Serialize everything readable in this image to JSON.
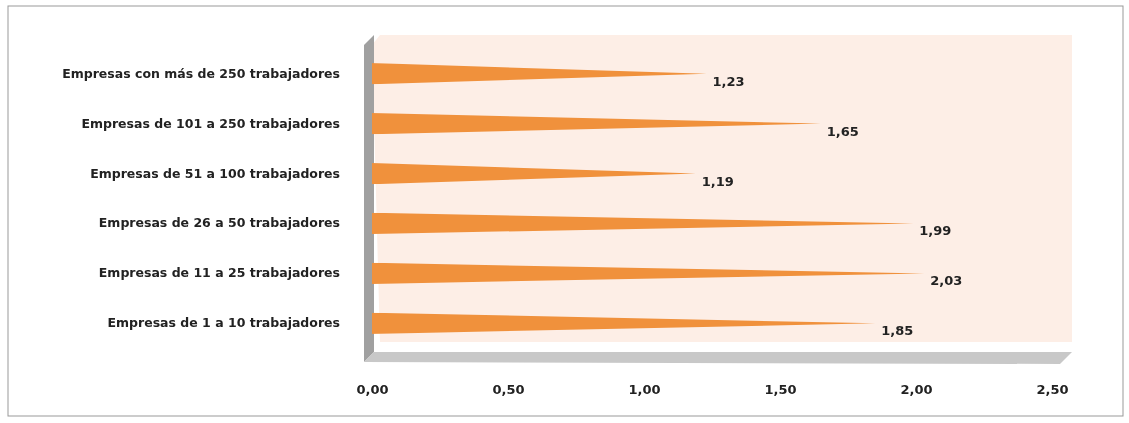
{
  "chart_data": {
    "type": "bar",
    "orientation": "horizontal",
    "categories": [
      "Empresas con más de 250 trabajadores",
      "Empresas de 101 a 250 trabajadores",
      "Empresas de 51 a 100 trabajadores",
      "Empresas de 26 a 50 trabajadores",
      "Empresas de 11 a 25 trabajadores",
      "Empresas de 1 a 10 trabajadores"
    ],
    "values": [
      1.23,
      1.65,
      1.19,
      1.99,
      2.03,
      1.85
    ],
    "value_labels": [
      "1,23",
      "1,65",
      "1,19",
      "1,99",
      "2,03",
      "1,85"
    ],
    "color": "#f0913c",
    "xlim": [
      0,
      2.5
    ],
    "xticks": [
      {
        "value": 0,
        "label": "0,00"
      },
      {
        "value": 0.5,
        "label": "0,50"
      },
      {
        "value": 1,
        "label": "1,00"
      },
      {
        "value": 1.5,
        "label": "1,50"
      },
      {
        "value": 2,
        "label": "2,00"
      },
      {
        "value": 2.5,
        "label": "2,50"
      }
    ],
    "grid": false
  }
}
